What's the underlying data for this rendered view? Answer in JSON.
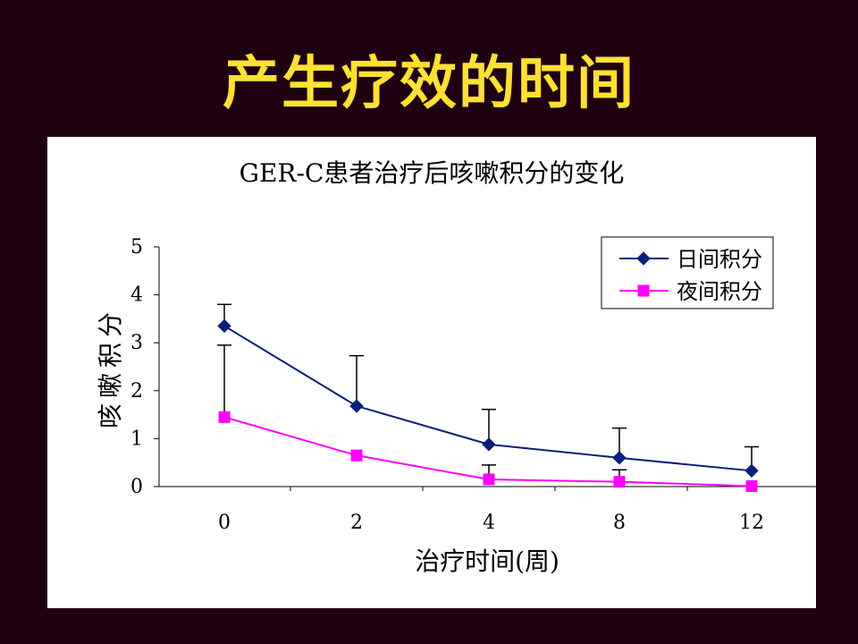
{
  "slide": {
    "title": "产生疗效的时间"
  },
  "chart_data": {
    "type": "line",
    "title": "GER-C患者治疗后咳嗽积分的变化",
    "xlabel": "治疗时间(周)",
    "ylabel": "咳嗽积分",
    "categories": [
      "0",
      "2",
      "4",
      "8",
      "12"
    ],
    "ylim": [
      0,
      5
    ],
    "yticks": [
      "0",
      "1",
      "2",
      "3",
      "4",
      "5"
    ],
    "legend_position": "top-right",
    "grid": false,
    "series": [
      {
        "name": "日间积分",
        "color": "#0B1F7A",
        "marker": "diamond",
        "values": [
          3.35,
          1.68,
          0.88,
          0.6,
          0.33
        ],
        "error_upper": [
          0.45,
          1.05,
          0.73,
          0.62,
          0.5
        ]
      },
      {
        "name": "夜间积分",
        "color": "#FF00FF",
        "marker": "square",
        "values": [
          1.45,
          0.65,
          0.15,
          0.1,
          0.01
        ],
        "error_upper": [
          1.5,
          0.0,
          0.3,
          0.25,
          0.0
        ]
      }
    ]
  }
}
